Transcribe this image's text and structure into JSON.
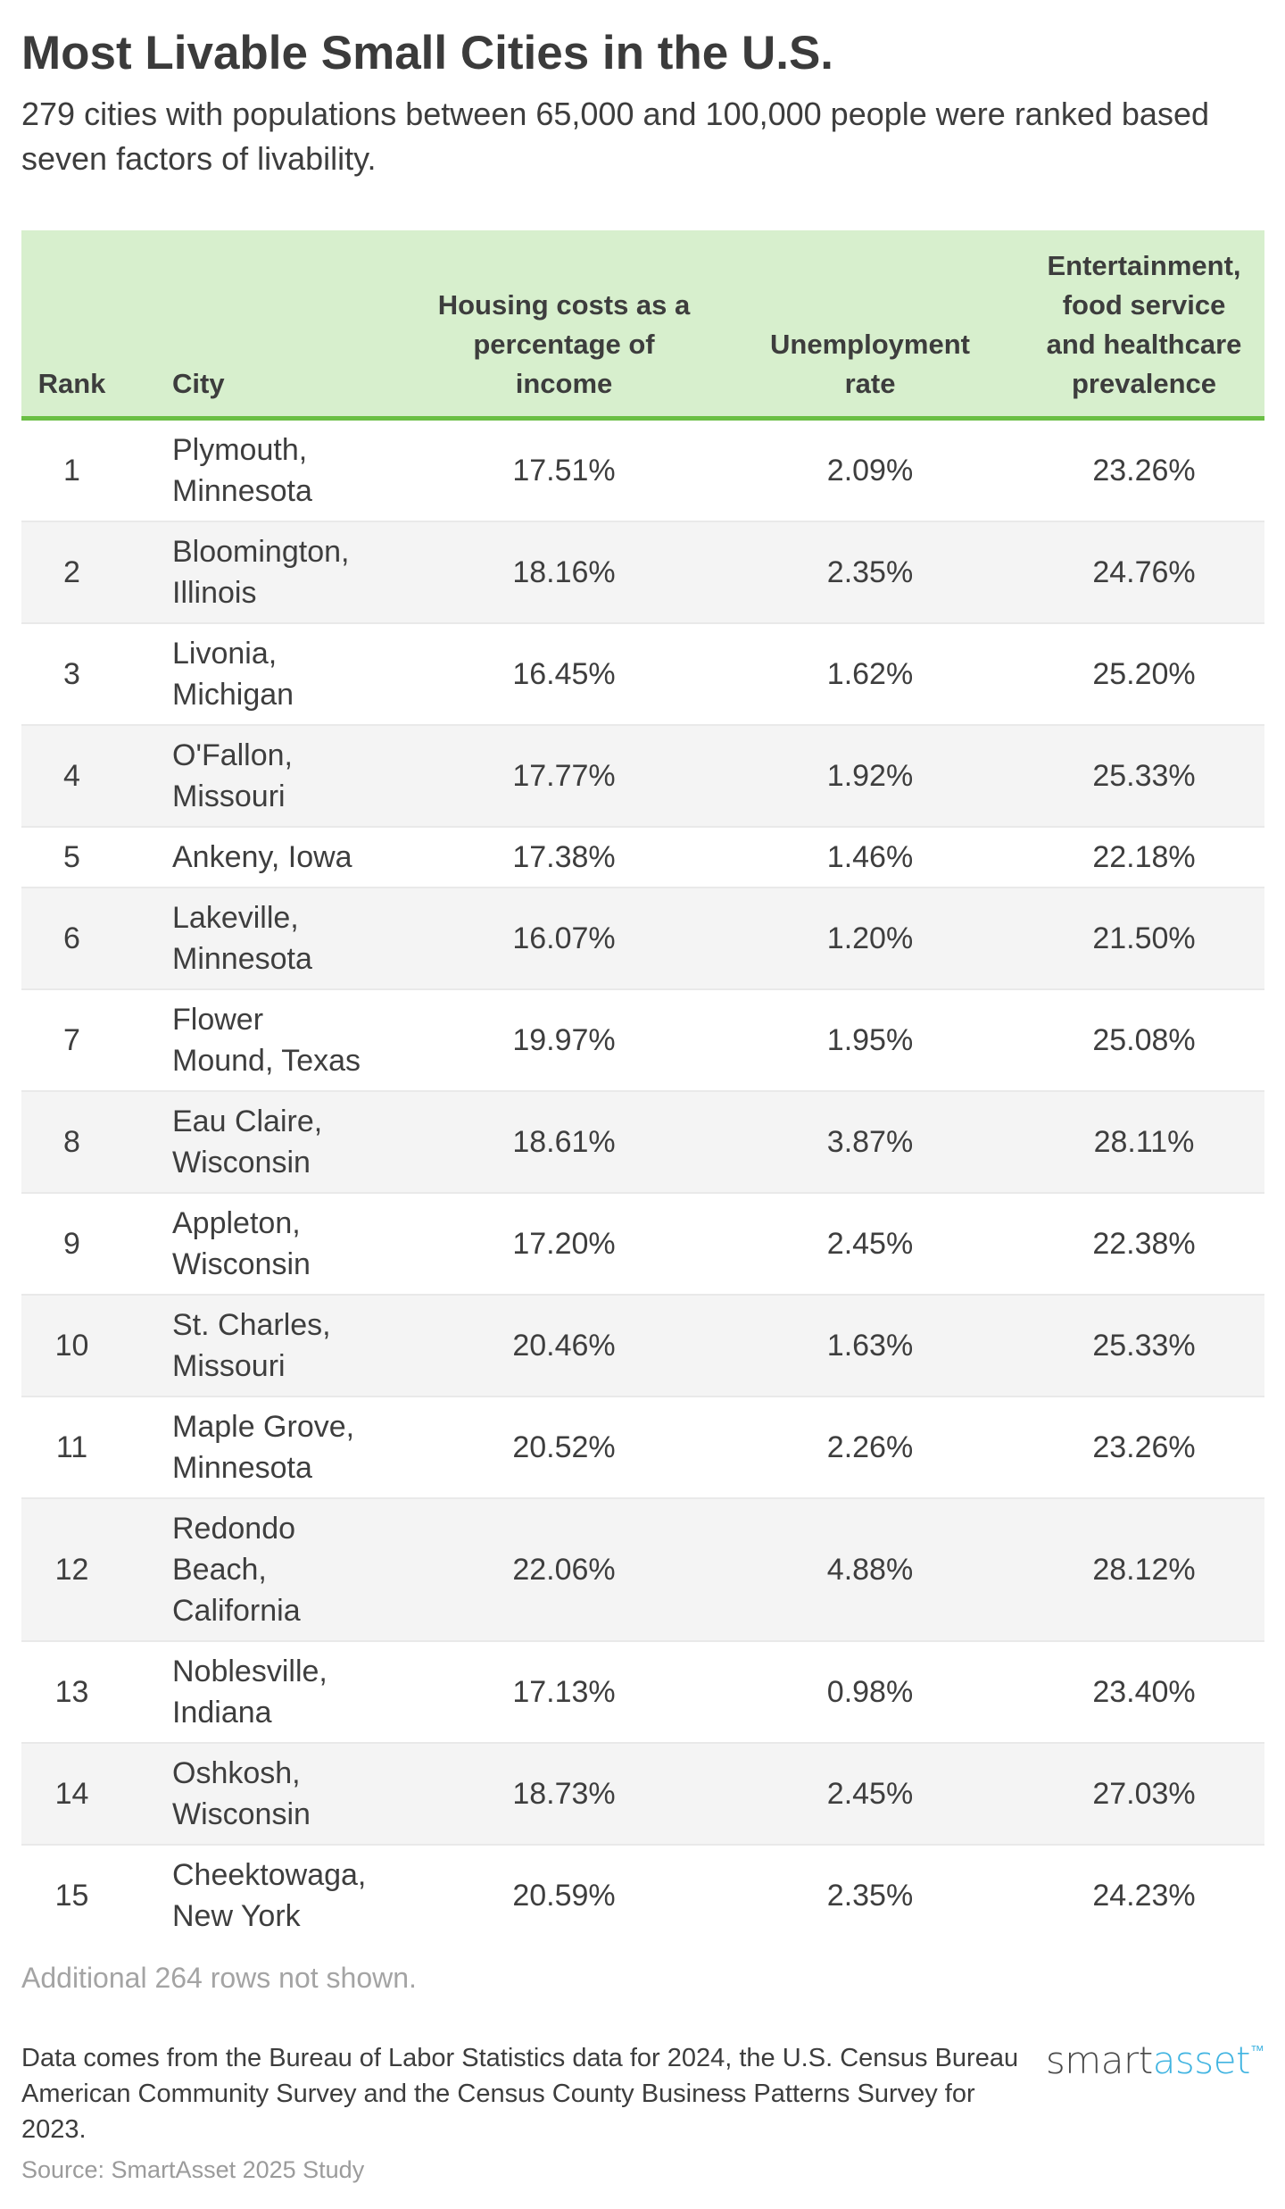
{
  "title": "Most Livable Small Cities in the U.S.",
  "subtitle": "279 cities with populations between 65,000 and 100,000 people were ranked based seven factors of livability.",
  "chart_data": {
    "type": "table",
    "title": "Most Livable Small Cities in the U.S.",
    "subtitle": "279 cities with populations between 65,000 and 100,000 people were ranked based seven factors of livability.",
    "columns": [
      "Rank",
      "City",
      "Housing costs as a percentage of income",
      "Unemployment rate",
      "Entertainment, food service and healthcare prevalence"
    ],
    "rows": [
      {
        "rank": "1",
        "city": "Plymouth, Minnesota",
        "housing": "17.51%",
        "unemployment": "2.09%",
        "entertainment": "23.26%"
      },
      {
        "rank": "2",
        "city": "Bloomington, Illinois",
        "housing": "18.16%",
        "unemployment": "2.35%",
        "entertainment": "24.76%"
      },
      {
        "rank": "3",
        "city": "Livonia, Michigan",
        "housing": "16.45%",
        "unemployment": "1.62%",
        "entertainment": "25.20%"
      },
      {
        "rank": "4",
        "city": "O'Fallon, Missouri",
        "housing": "17.77%",
        "unemployment": "1.92%",
        "entertainment": "25.33%"
      },
      {
        "rank": "5",
        "city": "Ankeny, Iowa",
        "housing": "17.38%",
        "unemployment": "1.46%",
        "entertainment": "22.18%"
      },
      {
        "rank": "6",
        "city": "Lakeville, Minnesota",
        "housing": "16.07%",
        "unemployment": "1.20%",
        "entertainment": "21.50%"
      },
      {
        "rank": "7",
        "city": "Flower Mound, Texas",
        "housing": "19.97%",
        "unemployment": "1.95%",
        "entertainment": "25.08%"
      },
      {
        "rank": "8",
        "city": "Eau Claire, Wisconsin",
        "housing": "18.61%",
        "unemployment": "3.87%",
        "entertainment": "28.11%"
      },
      {
        "rank": "9",
        "city": "Appleton, Wisconsin",
        "housing": "17.20%",
        "unemployment": "2.45%",
        "entertainment": "22.38%"
      },
      {
        "rank": "10",
        "city": "St. Charles, Missouri",
        "housing": "20.46%",
        "unemployment": "1.63%",
        "entertainment": "25.33%"
      },
      {
        "rank": "11",
        "city": "Maple Grove, Minnesota",
        "housing": "20.52%",
        "unemployment": "2.26%",
        "entertainment": "23.26%"
      },
      {
        "rank": "12",
        "city": "Redondo Beach, California",
        "housing": "22.06%",
        "unemployment": "4.88%",
        "entertainment": "28.12%"
      },
      {
        "rank": "13",
        "city": "Noblesville, Indiana",
        "housing": "17.13%",
        "unemployment": "0.98%",
        "entertainment": "23.40%"
      },
      {
        "rank": "14",
        "city": "Oshkosh, Wisconsin",
        "housing": "18.73%",
        "unemployment": "2.45%",
        "entertainment": "27.03%"
      },
      {
        "rank": "15",
        "city": "Cheektowaga, New York",
        "housing": "20.59%",
        "unemployment": "2.35%",
        "entertainment": "24.23%"
      }
    ],
    "note": "Additional 264 rows not shown.",
    "source": "Source: SmartAsset 2025 Study",
    "legend_position": "none",
    "grid": "row-stripes"
  },
  "table_header": {
    "rank": "Rank",
    "city": "City",
    "housing": "Housing costs as a percentage of income",
    "unemployment": "Unemployment rate",
    "entertainment": "Entertainment, food service and healthcare prevalence"
  },
  "table_note": "Additional 264 rows not shown.",
  "footer": {
    "disclaimer": "Data comes from the Bureau of Labor Statistics data for 2024, the U.S. Census Bureau American Community Survey and the Census County Business Patterns Survey for 2023.",
    "source": "Source: SmartAsset 2025 Study",
    "logo_first": "smart",
    "logo_second": "asset",
    "logo_tm": "™"
  },
  "colors": {
    "header_background": "#d7efcd",
    "header_border": "#6abf44",
    "row_stripe": "#f4f4f4",
    "text_dark": "#3d3d3d",
    "note_gray": "#a4a4a4",
    "logo_blue": "#41b4e1"
  }
}
